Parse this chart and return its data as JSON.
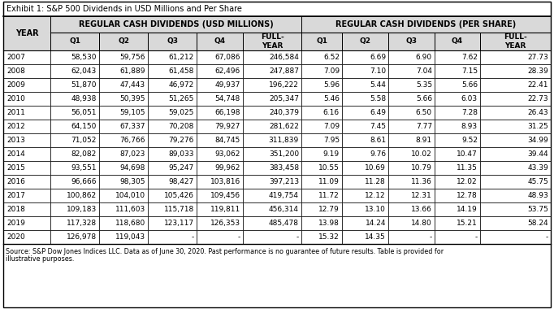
{
  "title": "Exhibit 1: S&P 500 Dividends in USD Millions and Per Share",
  "header1": "REGULAR CASH DIVIDENDS (USD MILLIONS)",
  "header2": "REGULAR CASH DIVIDENDS (PER SHARE)",
  "rows": [
    [
      "2007",
      "58,530",
      "59,756",
      "61,212",
      "67,086",
      "246,584",
      "6.52",
      "6.69",
      "6.90",
      "7.62",
      "27.73"
    ],
    [
      "2008",
      "62,043",
      "61,889",
      "61,458",
      "62,496",
      "247,887",
      "7.09",
      "7.10",
      "7.04",
      "7.15",
      "28.39"
    ],
    [
      "2009",
      "51,870",
      "47,443",
      "46,972",
      "49,937",
      "196,222",
      "5.96",
      "5.44",
      "5.35",
      "5.66",
      "22.41"
    ],
    [
      "2010",
      "48,938",
      "50,395",
      "51,265",
      "54,748",
      "205,347",
      "5.46",
      "5.58",
      "5.66",
      "6.03",
      "22.73"
    ],
    [
      "2011",
      "56,051",
      "59,105",
      "59,025",
      "66,198",
      "240,379",
      "6.16",
      "6.49",
      "6.50",
      "7.28",
      "26.43"
    ],
    [
      "2012",
      "64,150",
      "67,337",
      "70,208",
      "79,927",
      "281,622",
      "7.09",
      "7.45",
      "7.77",
      "8.93",
      "31.25"
    ],
    [
      "2013",
      "71,052",
      "76,766",
      "79,276",
      "84,745",
      "311,839",
      "7.95",
      "8.61",
      "8.91",
      "9.52",
      "34.99"
    ],
    [
      "2014",
      "82,082",
      "87,023",
      "89,033",
      "93,062",
      "351,200",
      "9.19",
      "9.76",
      "10.02",
      "10.47",
      "39.44"
    ],
    [
      "2015",
      "93,551",
      "94,698",
      "95,247",
      "99,962",
      "383,458",
      "10.55",
      "10.69",
      "10.79",
      "11.35",
      "43.39"
    ],
    [
      "2016",
      "96,666",
      "98,305",
      "98,427",
      "103,816",
      "397,213",
      "11.09",
      "11.28",
      "11.36",
      "12.02",
      "45.75"
    ],
    [
      "2017",
      "100,862",
      "104,010",
      "105,426",
      "109,456",
      "419,754",
      "11.72",
      "12.12",
      "12.31",
      "12.78",
      "48.93"
    ],
    [
      "2018",
      "109,183",
      "111,603",
      "115,718",
      "119,811",
      "456,314",
      "12.79",
      "13.10",
      "13.66",
      "14.19",
      "53.75"
    ],
    [
      "2019",
      "117,328",
      "118,680",
      "123,117",
      "126,353",
      "485,478",
      "13.98",
      "14.24",
      "14.80",
      "15.21",
      "58.24"
    ],
    [
      "2020",
      "126,978",
      "119,043",
      "-",
      "-",
      "-",
      "15.32",
      "14.35",
      "-",
      "-",
      "-"
    ]
  ],
  "footnote_line1": "Source: S&P Dow Jones Indices LLC. Data as of June 30, 2020. Past performance is no guarantee of future results. Table is provided for",
  "footnote_line2": "illustrative purposes.",
  "bg_color": "#ffffff",
  "header_bg": "#d9d9d9",
  "title_bg": "#ffffff"
}
